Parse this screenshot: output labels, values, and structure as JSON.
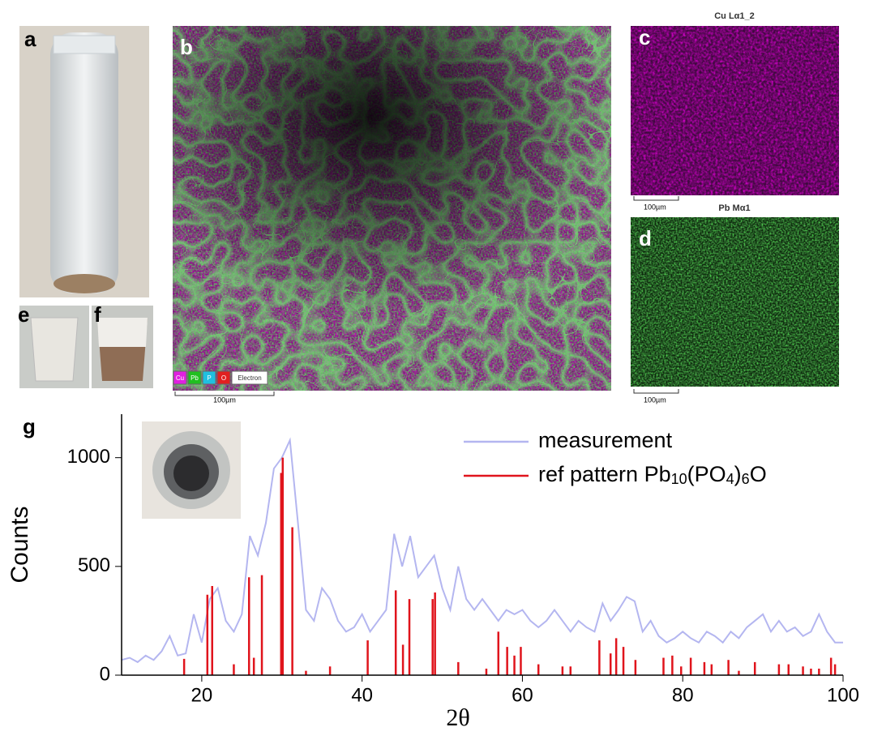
{
  "panels": {
    "labels": [
      "a",
      "b",
      "c",
      "d",
      "e",
      "f",
      "g"
    ],
    "b_legend": [
      "Cu",
      "Pb",
      "P",
      "O",
      "Electron"
    ],
    "b_scale": "100µm",
    "c_title": "Cu Lα1_2",
    "c_scale": "100µm",
    "d_title": "Pb Mα1",
    "d_scale": "100µm"
  },
  "chart_data": {
    "type": "line",
    "xlabel": "2θ",
    "ylabel": "Counts",
    "xlim": [
      10,
      100
    ],
    "ylim": [
      0,
      1200
    ],
    "xticks": [
      20,
      40,
      60,
      80,
      100
    ],
    "yticks": [
      0,
      500,
      1000
    ],
    "legend": "upper right",
    "series": [
      {
        "name": [
          "measurement"
        ],
        "color": "#b4b6f0",
        "style": "line",
        "x": [
          10,
          11,
          12,
          13,
          14,
          15,
          16,
          17,
          18,
          19,
          20,
          21,
          22,
          23,
          24,
          25,
          26,
          27,
          28,
          29,
          30,
          31,
          32,
          33,
          34,
          35,
          36,
          37,
          38,
          39,
          40,
          41,
          42,
          43,
          44,
          45,
          46,
          47,
          48,
          49,
          50,
          51,
          52,
          53,
          54,
          55,
          56,
          57,
          58,
          59,
          60,
          61,
          62,
          63,
          64,
          65,
          66,
          67,
          68,
          69,
          70,
          71,
          72,
          73,
          74,
          75,
          76,
          77,
          78,
          79,
          80,
          81,
          82,
          83,
          84,
          85,
          86,
          87,
          88,
          89,
          90,
          91,
          92,
          93,
          94,
          95,
          96,
          97,
          98,
          99,
          100
        ],
        "values": [
          70,
          80,
          60,
          90,
          70,
          110,
          180,
          90,
          100,
          280,
          150,
          350,
          400,
          250,
          200,
          280,
          640,
          550,
          700,
          950,
          1000,
          1080,
          700,
          300,
          250,
          400,
          350,
          250,
          200,
          220,
          280,
          200,
          250,
          300,
          650,
          500,
          640,
          450,
          500,
          550,
          400,
          300,
          500,
          350,
          300,
          350,
          300,
          250,
          300,
          280,
          300,
          250,
          220,
          250,
          300,
          250,
          200,
          250,
          220,
          200,
          330,
          250,
          300,
          360,
          340,
          200,
          250,
          180,
          150,
          170,
          200,
          170,
          150,
          200,
          180,
          150,
          200,
          170,
          220,
          250,
          280,
          200,
          250,
          200,
          220,
          180,
          200,
          280,
          200,
          150,
          150
        ]
      },
      {
        "name": [
          "ref pattern Pb",
          "10",
          "(PO",
          "4",
          ")",
          "6",
          "O"
        ],
        "color": "#e0141c",
        "style": "stick",
        "x": [
          17.8,
          20.7,
          21.3,
          24,
          25.9,
          26.5,
          27.5,
          29.9,
          30.1,
          31.3,
          33,
          36,
          40.7,
          44.2,
          45.1,
          45.9,
          48.8,
          49.1,
          52,
          55.5,
          57,
          58.1,
          59,
          59.8,
          62,
          65,
          66,
          69.6,
          71,
          71.7,
          72.6,
          74.1,
          77.6,
          78.7,
          79.8,
          81,
          82.7,
          83.6,
          85.7,
          87,
          89,
          92,
          93.2,
          95,
          96,
          97,
          98.5,
          99
        ],
        "values": [
          75,
          370,
          410,
          50,
          450,
          80,
          460,
          930,
          1000,
          680,
          20,
          40,
          160,
          390,
          140,
          350,
          350,
          380,
          60,
          30,
          200,
          130,
          90,
          130,
          50,
          40,
          40,
          160,
          100,
          170,
          130,
          70,
          80,
          90,
          40,
          80,
          60,
          50,
          70,
          20,
          60,
          50,
          50,
          40,
          30,
          30,
          80,
          50
        ]
      }
    ]
  }
}
